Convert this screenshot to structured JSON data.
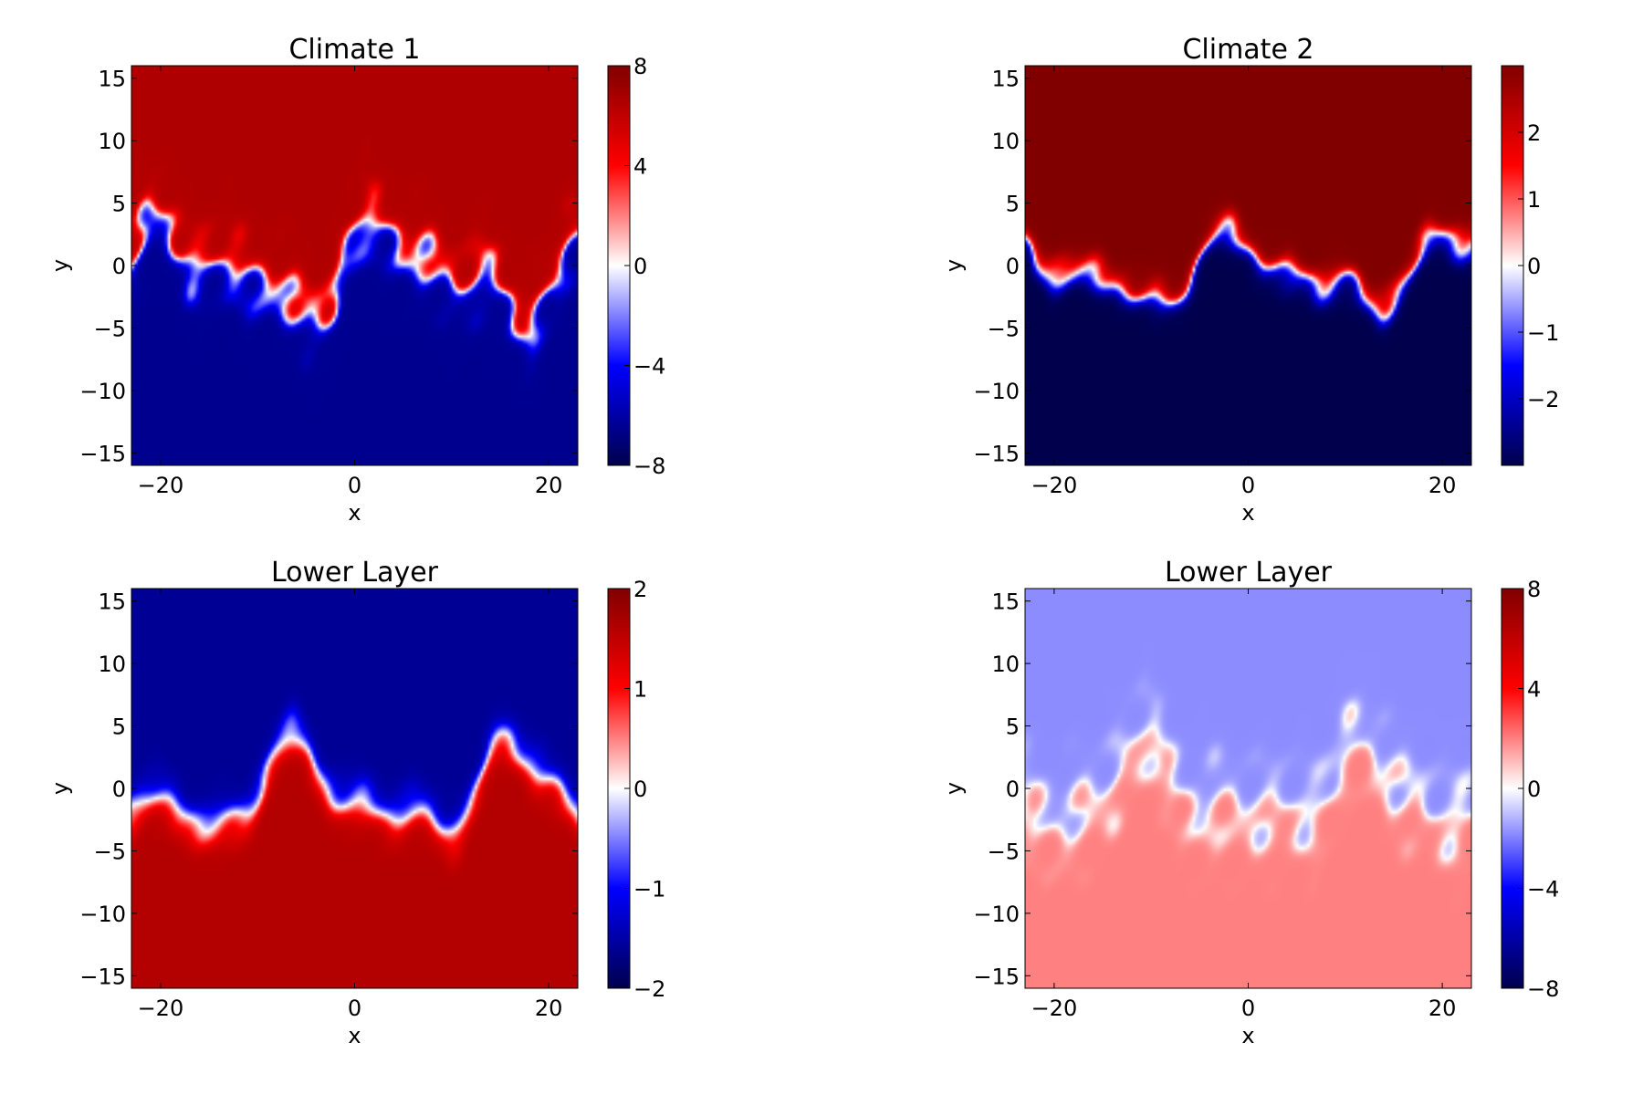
{
  "chart_data": [
    {
      "type": "heatmap",
      "title": "Climate 1",
      "xlabel": "x",
      "ylabel": "y",
      "xlim": [
        -23,
        23
      ],
      "ylim": [
        -16,
        16
      ],
      "xticks": [
        -20,
        0,
        20
      ],
      "yticks": [
        -15,
        -10,
        -5,
        0,
        5,
        10,
        15
      ],
      "colormap": "seismic",
      "colorbar": {
        "min": -8,
        "max": 8,
        "ticks": [
          -8,
          -4,
          0,
          4,
          8
        ]
      },
      "field": {
        "top_value": 6.5,
        "bottom_value": -6.5,
        "front_amp": 4.5,
        "eddy_strength": 1.2,
        "front_width": 1.6
      }
    },
    {
      "type": "heatmap",
      "title": "Climate 2",
      "xlabel": "x",
      "ylabel": "y",
      "xlim": [
        -23,
        23
      ],
      "ylim": [
        -16,
        16
      ],
      "xticks": [
        -20,
        0,
        20
      ],
      "yticks": [
        -15,
        -10,
        -5,
        0,
        5,
        10,
        15
      ],
      "colormap": "seismic",
      "colorbar": {
        "min": -3,
        "max": 3,
        "ticks": [
          -2,
          -1,
          0,
          1,
          2
        ]
      },
      "field": {
        "top_value": 3,
        "bottom_value": -3,
        "front_amp": 3.5,
        "eddy_strength": 0.6,
        "front_width": 1.0
      }
    },
    {
      "type": "heatmap",
      "title": "Lower Layer",
      "xlabel": "x",
      "ylabel": "y",
      "xlim": [
        -23,
        23
      ],
      "ylim": [
        -16,
        16
      ],
      "xticks": [
        -20,
        0,
        20
      ],
      "yticks": [
        -15,
        -10,
        -5,
        0,
        5,
        10,
        15
      ],
      "colormap": "seismic",
      "colorbar": {
        "min": -2,
        "max": 2,
        "ticks": [
          -2,
          -1,
          0,
          1,
          2
        ]
      },
      "field": {
        "top_value": -1.6,
        "bottom_value": 1.6,
        "front_amp": 4.5,
        "eddy_strength": 0.35,
        "front_width": 1.4
      }
    },
    {
      "type": "heatmap",
      "title": "Lower Layer",
      "xlabel": "x",
      "ylabel": "y",
      "xlim": [
        -23,
        23
      ],
      "ylim": [
        -16,
        16
      ],
      "xticks": [
        -20,
        0,
        20
      ],
      "yticks": [
        -15,
        -10,
        -5,
        0,
        5,
        10,
        15
      ],
      "colormap": "seismic",
      "colorbar": {
        "min": -8,
        "max": 8,
        "ticks": [
          -8,
          -4,
          0,
          4,
          8
        ]
      },
      "field": {
        "top_value": -1.8,
        "bottom_value": 2.0,
        "front_amp": 4.0,
        "eddy_strength": 1.4,
        "front_width": 2.2
      }
    }
  ]
}
